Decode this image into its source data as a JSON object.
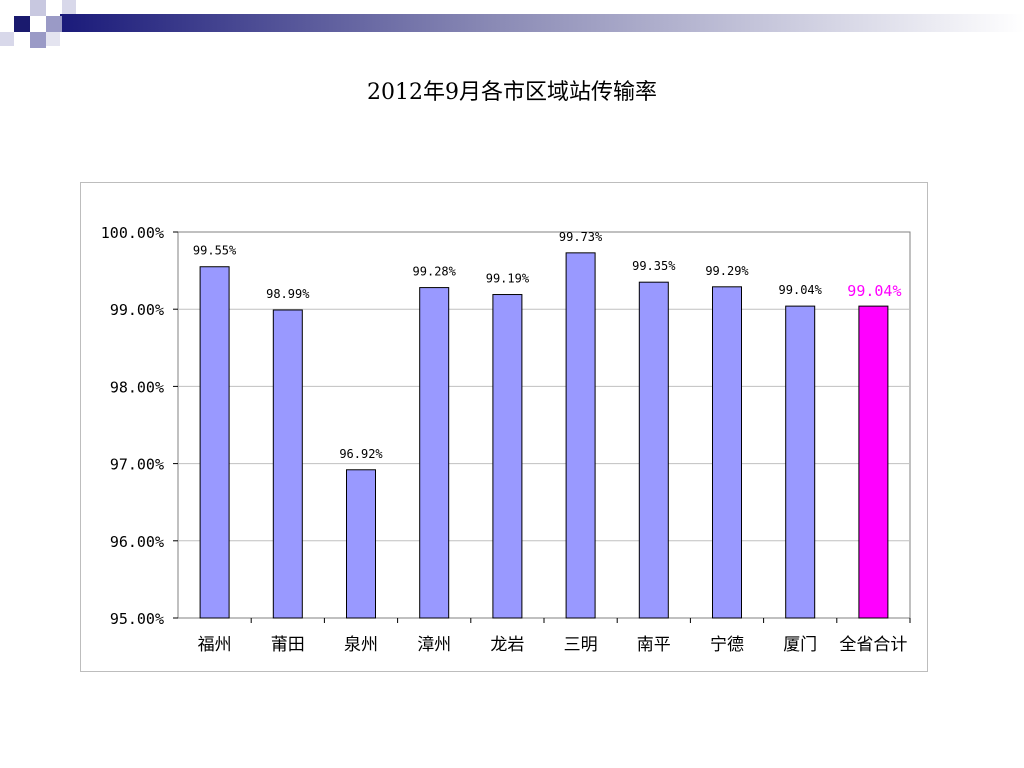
{
  "slide": {
    "title": "2012年9月各市区域站传输率"
  },
  "colors": {
    "bar": "#9999ff",
    "highlight": "#ff00ff",
    "text": "#000000"
  },
  "chart_data": {
    "type": "bar",
    "title": "",
    "xlabel": "",
    "ylabel": "",
    "categories": [
      "福州",
      "莆田",
      "泉州",
      "漳州",
      "龙岩",
      "三明",
      "南平",
      "宁德",
      "厦门",
      "全省合计"
    ],
    "values": [
      99.55,
      98.99,
      96.92,
      99.28,
      99.19,
      99.73,
      99.35,
      99.29,
      99.04,
      99.04
    ],
    "value_labels": [
      "99.55%",
      "98.99%",
      "96.92%",
      "99.28%",
      "99.19%",
      "99.73%",
      "99.35%",
      "99.29%",
      "99.04%",
      "99.04%"
    ],
    "highlight_index": 9,
    "ylim": [
      95,
      100
    ],
    "yticks": [
      95,
      96,
      97,
      98,
      99,
      100
    ],
    "ytick_labels": [
      "95.00%",
      "96.00%",
      "97.00%",
      "98.00%",
      "99.00%",
      "100.00%"
    ],
    "grid": true,
    "legend": "none"
  }
}
